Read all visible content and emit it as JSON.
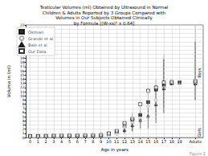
{
  "chart_data": {
    "type": "scatter",
    "title": "Testicular Volumes (ml) Obtained by Ultrasound in Normal\nChildren & Adults Reported by 3 Groups Compared with\nVolumes in Our Subjects Obtained Clinically\nby Formula [(W-xs)³ x 0.64]",
    "xlabel": "Age in years",
    "ylabel": "Volume in (ml)",
    "xlim": [
      -0.5,
      22.0
    ],
    "ylim": [
      0,
      27
    ],
    "xticks": [
      0,
      1,
      2,
      3,
      4,
      5,
      6,
      7,
      8,
      9,
      10,
      11,
      12,
      13,
      14,
      15,
      16,
      17,
      18,
      19,
      {
        "value": 21,
        "label": "Adults"
      }
    ],
    "yticks": [
      0,
      1,
      2,
      3,
      4,
      5,
      6,
      7,
      8,
      9,
      10,
      11,
      12,
      13,
      14,
      15,
      16,
      17,
      18,
      19,
      20,
      21,
      22,
      23,
      24,
      25,
      26,
      27
    ],
    "grid": true,
    "legend": "upper left",
    "series": [
      {
        "name": "Okmian",
        "marker": "square",
        "color": "#000000",
        "x": [
          0,
          1,
          2,
          3,
          4,
          5,
          6,
          7,
          8,
          9,
          10,
          11,
          12,
          13,
          14,
          15,
          16,
          17,
          18,
          19,
          21
        ],
        "values": [
          0.3,
          0.3,
          0.35,
          0.4,
          0.4,
          0.45,
          0.45,
          0.5,
          0.5,
          0.55,
          0.8,
          1.3,
          2.8,
          4.2,
          5.4,
          8.5,
          11.5,
          12.5,
          13.0,
          13.2,
          13.2
        ]
      },
      {
        "name": "Grande et al",
        "marker": "open_circle",
        "color": "#999999",
        "x": [
          10,
          11,
          12,
          13,
          14,
          15,
          16,
          17,
          21
        ],
        "values": [
          0.5,
          0.9,
          2.5,
          3.5,
          4.5,
          7.5,
          9.0,
          12.0,
          13.0
        ],
        "yerr_lo": [
          0.2,
          0.4,
          1.2,
          1.8,
          2.2,
          3.5,
          3.5,
          4.5,
          4.0
        ],
        "yerr_hi": [
          0.3,
          0.5,
          1.5,
          2.5,
          3.0,
          4.5,
          5.0,
          8.0,
          14.0
        ]
      },
      {
        "name": "Bale et al",
        "marker": "triangle",
        "color": "#000000",
        "x": [
          12,
          13,
          14,
          15,
          16,
          17,
          21
        ],
        "values": [
          1.8,
          3.0,
          4.2,
          5.2,
          8.0,
          11.8,
          13.0
        ],
        "yerr_lo": [
          0.8,
          1.5,
          2.0,
          3.0,
          4.5,
          6.0,
          4.0
        ],
        "yerr_hi": [
          0.8,
          1.5,
          2.0,
          3.0,
          4.5,
          7.0,
          10.0
        ]
      },
      {
        "name": "Our Data",
        "marker": "open_square",
        "color": "#000000",
        "x": [
          0,
          1,
          2,
          3,
          4,
          5,
          6,
          7,
          8,
          9,
          10,
          11,
          12,
          13,
          14,
          15,
          16,
          17,
          18,
          21
        ],
        "values": [
          0.35,
          0.35,
          0.4,
          0.45,
          0.5,
          0.5,
          0.5,
          0.55,
          0.55,
          0.6,
          1.0,
          1.6,
          3.5,
          4.5,
          8.0,
          11.2,
          12.0,
          13.2,
          13.3,
          13.5
        ]
      }
    ],
    "annotations": [
      {
        "text": "Boys",
        "x": 21.2,
        "y": 15.5
      },
      {
        "text": "Girls",
        "x": 21.2,
        "y": 1.2
      },
      {
        "text": "Figure 2",
        "color": "#888888"
      }
    ]
  }
}
